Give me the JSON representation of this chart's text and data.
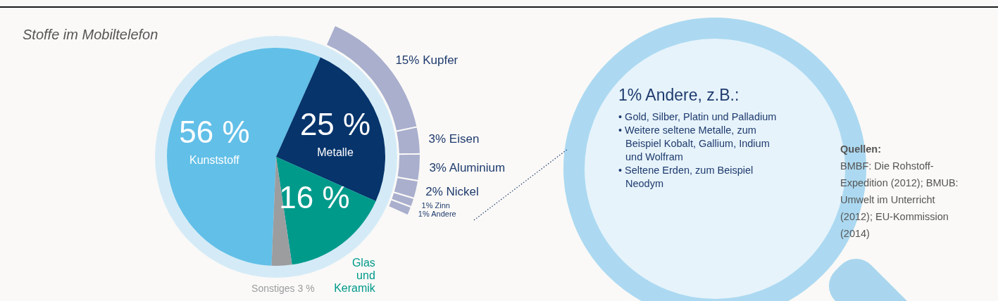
{
  "chart_data": [
    {
      "type": "pie",
      "title": "Stoffe im Mobiltelefon",
      "categories": [
        "Kunststoff",
        "Metalle",
        "Glas und Keramik",
        "Sonstiges"
      ],
      "values": [
        56,
        25,
        16,
        3
      ],
      "value_labels": [
        "56 %",
        "25 %",
        "16 %",
        "3 %"
      ],
      "colors": [
        "#62bfe7",
        "#06346b",
        "#009a8b",
        "#9c9d9f"
      ],
      "annotations": [
        "1% Andere, z.B.:",
        "• Gold, Silber, Platin und Palladium",
        "• Weitere seltene Metalle, zum Beispiel Kobalt, Gallium, Indium und Wolfram",
        "• Seltene Erden, zum Beispiel Neodym",
        "Quellen:",
        "BMBF: Die Rohstoff-Expedition (2012); BMUB: Umwelt im Unterricht (2012); EU-Kommission (2014)"
      ]
    },
    {
      "type": "donut",
      "categories": [
        "Kupfer",
        "Eisen",
        "Aluminium",
        "Nickel",
        "Zinn",
        "Andere"
      ],
      "values": [
        15,
        3,
        3,
        2,
        1,
        1
      ],
      "value_labels": [
        "15%",
        "3%",
        "3%",
        "2%",
        "1%",
        "1%"
      ],
      "colors": [
        "#a9afcd",
        "#a9afcd",
        "#a9afcd",
        "#a9afcd",
        "#a9afcd",
        "#a9afcd"
      ]
    }
  ]
}
